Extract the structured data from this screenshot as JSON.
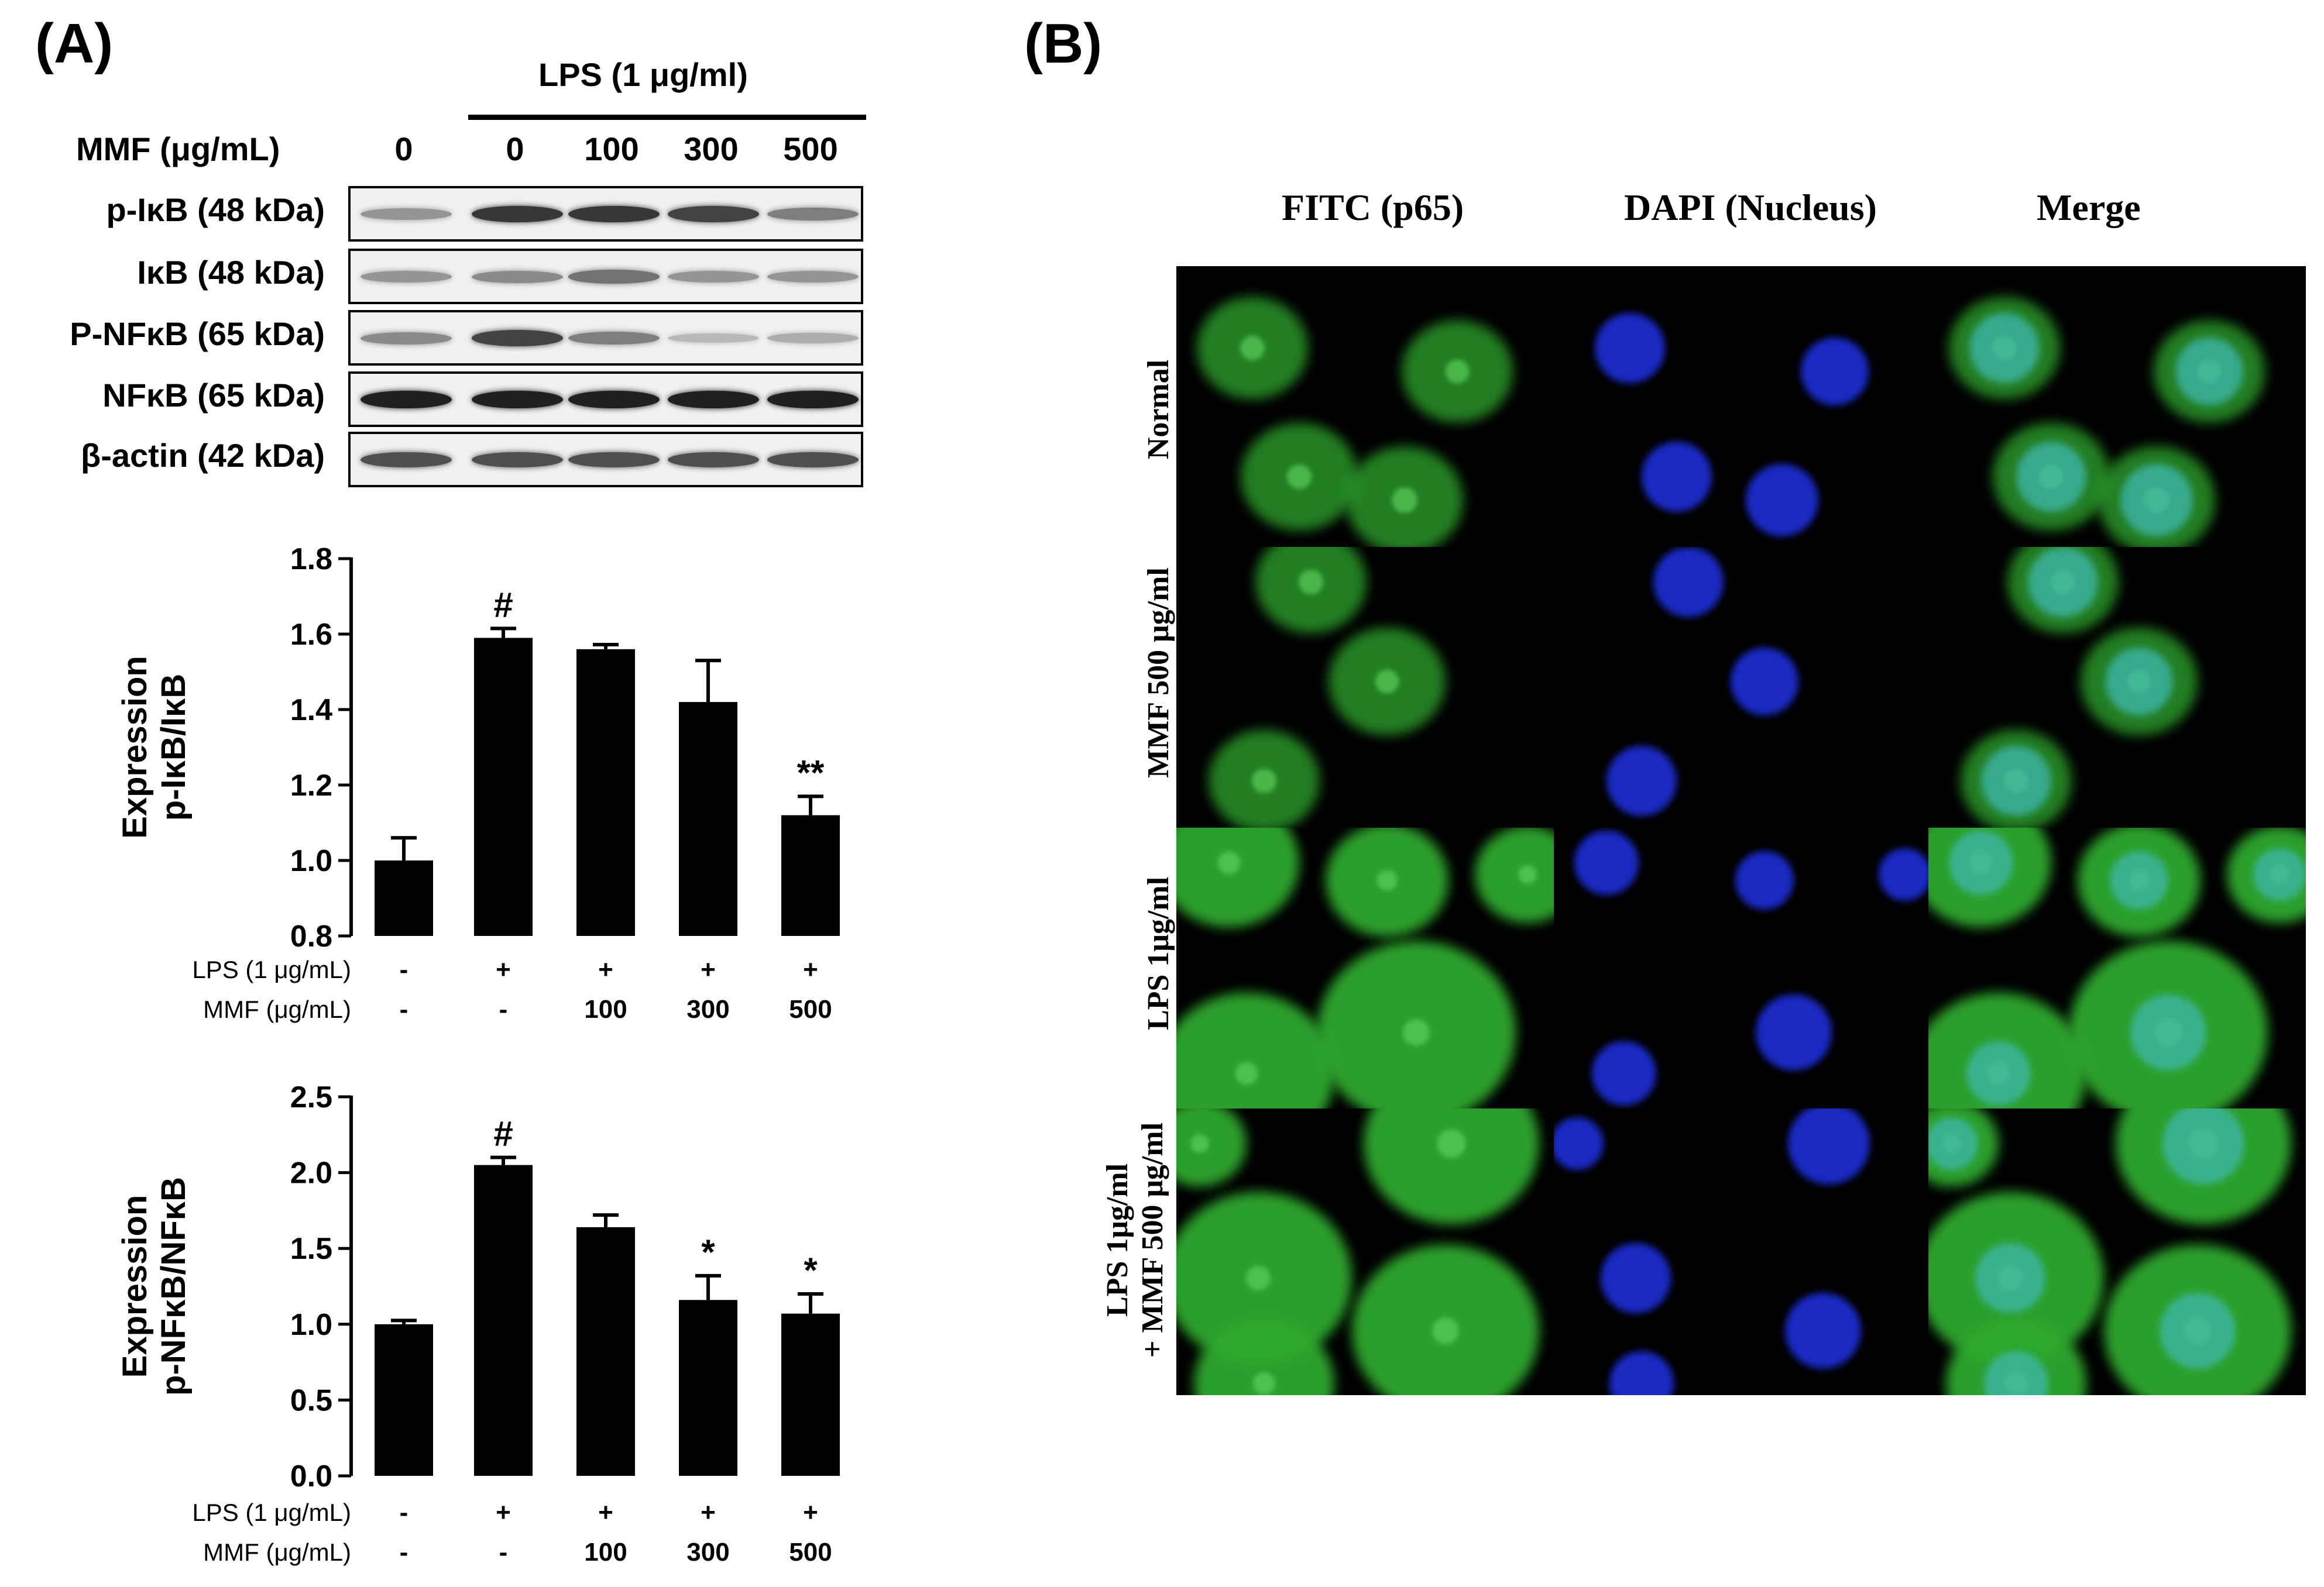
{
  "panels": {
    "a": "(A)",
    "b": "(B)"
  },
  "blot": {
    "lps_header": "LPS (1 μg/ml)",
    "mmf_label": "MMF (μg/mL)",
    "mmf_lanes": [
      "0",
      "0",
      "100",
      "300",
      "500"
    ],
    "rows": [
      {
        "label": "p-IκB (48 kDa)",
        "intensity": [
          0.45,
          0.85,
          0.85,
          0.8,
          0.55
        ]
      },
      {
        "label": "IκB (48 kDa)",
        "intensity": [
          0.45,
          0.5,
          0.6,
          0.45,
          0.45
        ]
      },
      {
        "label": "P-NFκB (65 kDa)",
        "intensity": [
          0.5,
          0.8,
          0.55,
          0.3,
          0.35
        ]
      },
      {
        "label": "NFκB (65 kDa)",
        "intensity": [
          0.95,
          0.95,
          0.95,
          0.95,
          0.95
        ]
      },
      {
        "label": "β-actin (42 kDa)",
        "intensity": [
          0.75,
          0.75,
          0.75,
          0.75,
          0.75
        ]
      }
    ]
  },
  "chart_data": [
    {
      "type": "bar",
      "ylabel": [
        "Expression",
        "p-IκB/IκB"
      ],
      "ylim": [
        0.8,
        1.8
      ],
      "yticks": [
        "0.8",
        "1.0",
        "1.2",
        "1.4",
        "1.6",
        "1.8"
      ],
      "values": [
        1.0,
        1.59,
        1.56,
        1.42,
        1.12
      ],
      "errors": [
        0.06,
        0.025,
        0.012,
        0.11,
        0.05
      ],
      "annotations": [
        "",
        "#",
        "",
        "",
        "**"
      ],
      "condition_rows": [
        {
          "label": "LPS (1 μg/mL)",
          "values": [
            "-",
            "+",
            "+",
            "+",
            "+"
          ]
        },
        {
          "label": "MMF (μg/mL)",
          "values": [
            "-",
            "-",
            "100",
            "300",
            "500"
          ]
        }
      ]
    },
    {
      "type": "bar",
      "ylabel": [
        "Expression",
        "p-NFκB/NFκB"
      ],
      "ylim": [
        0.0,
        2.5
      ],
      "yticks": [
        "0.0",
        "0.5",
        "1.0",
        "1.5",
        "2.0",
        "2.5"
      ],
      "values": [
        1.0,
        2.05,
        1.64,
        1.16,
        1.07
      ],
      "errors": [
        0.025,
        0.05,
        0.08,
        0.16,
        0.13
      ],
      "annotations": [
        "",
        "#",
        "",
        "*",
        "*"
      ],
      "condition_rows": [
        {
          "label": "LPS (1 μg/mL)",
          "values": [
            "-",
            "+",
            "+",
            "+",
            "+"
          ]
        },
        {
          "label": "MMF (μg/mL)",
          "values": [
            "-",
            "-",
            "100",
            "300",
            "500"
          ]
        }
      ]
    }
  ],
  "fluorescence": {
    "columns": [
      "FITC (p65)",
      "DAPI (Nucleus)",
      "Merge"
    ],
    "rows": [
      {
        "line1": "Normal",
        "line2": ""
      },
      {
        "line1": "MMF 500 μg/ml",
        "line2": ""
      },
      {
        "line1": "LPS 1μg/ml",
        "line2": ""
      },
      {
        "line1": "LPS 1μg/ml",
        "line2": "+ MMF 500 μg/ml"
      }
    ],
    "colors": {
      "fitc": "#2fa82f",
      "dapi": "#1a2ed8",
      "merge_nucleus": "#3fb8b0"
    }
  }
}
